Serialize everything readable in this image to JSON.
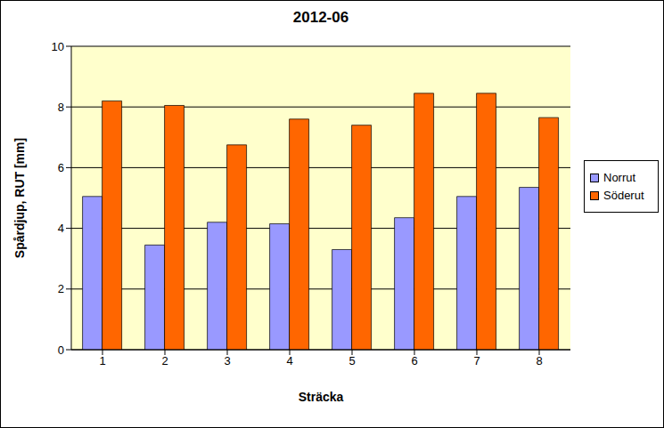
{
  "chart_data": {
    "type": "bar",
    "title": "2012-06",
    "x_label": "Sträcka",
    "y_label": "Spårdjup, RUT [mm]",
    "categories": [
      "1",
      "2",
      "3",
      "4",
      "5",
      "6",
      "7",
      "8"
    ],
    "series": [
      {
        "name": "Norrut",
        "color": "#9999FF",
        "values": [
          5.05,
          3.45,
          4.2,
          4.15,
          3.3,
          4.35,
          5.05,
          5.35
        ]
      },
      {
        "name": "Söderut",
        "color": "#FF6600",
        "values": [
          8.2,
          8.05,
          6.75,
          7.6,
          7.4,
          8.45,
          8.45,
          7.65
        ]
      }
    ],
    "ylim": [
      0,
      10
    ],
    "yticks": [
      0,
      2,
      4,
      6,
      8,
      10
    ],
    "grid": true,
    "legend": "right"
  }
}
